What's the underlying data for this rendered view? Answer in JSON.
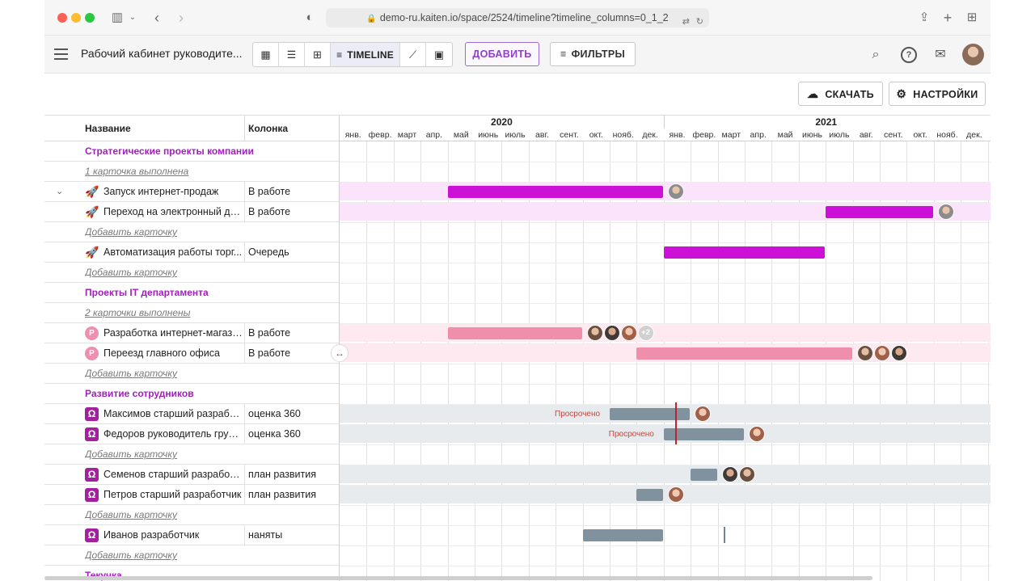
{
  "browser": {
    "url": "demo-ru.kaiten.io/space/2524/timeline?timeline_columns=0_1_2"
  },
  "header": {
    "space_title": "Рабочий кабинет руководите...",
    "view_active_label": "TIMELINE",
    "add_label": "ДОБАВИТЬ",
    "filters_label": "ФИЛЬТРЫ"
  },
  "toolbar": {
    "download_label": "СКАЧАТЬ",
    "settings_label": "НАСТРОЙКИ"
  },
  "table": {
    "col_name": "Название",
    "col_column": "Колонка"
  },
  "timeline": {
    "years": [
      "2020",
      "2021"
    ],
    "months": [
      "янв.",
      "февр.",
      "март",
      "апр.",
      "май",
      "июнь",
      "июль",
      "авг.",
      "сент.",
      "окт.",
      "нояб.",
      "дек.",
      "янв.",
      "февр.",
      "март",
      "апр.",
      "май",
      "июнь",
      "июль",
      "авг.",
      "сент.",
      "окт.",
      "нояб.",
      "дек."
    ],
    "overdue_label": "Просрочено",
    "more_avatars": "+2"
  },
  "rows": [
    {
      "type": "group",
      "title": "Стратегические проекты компании"
    },
    {
      "type": "done",
      "text": "1 карточка выполнена"
    },
    {
      "type": "card",
      "icon": "rocket-icon",
      "name": "Запуск интернет-продаж",
      "column": "В работе",
      "start": "2020-05",
      "end": "2020-12",
      "color": "#cc10d6",
      "band": "#fbe4fb"
    },
    {
      "type": "card",
      "icon": "rocket-icon",
      "name": "Переход на электронный до...",
      "column": "В работе",
      "start": "2021-07",
      "end": "2021-10",
      "color": "#cc10d6",
      "band": "#fbe4fb"
    },
    {
      "type": "add",
      "text": "Добавить карточку"
    },
    {
      "type": "card",
      "icon": "rocket-icon",
      "name": "Автоматизация работы торг...",
      "column": "Очередь",
      "start": "2021-01",
      "end": "2021-06",
      "color": "#cc10d6",
      "band": ""
    },
    {
      "type": "add",
      "text": "Добавить карточку"
    },
    {
      "type": "group",
      "title": "Проекты IT департамента"
    },
    {
      "type": "done",
      "text": "2 карточки выполнены"
    },
    {
      "type": "card",
      "icon": "p-icon",
      "name": "Разработка интернет-магази...",
      "column": "В работе",
      "start": "2020-05",
      "end": "2020-09",
      "color": "#f08fab",
      "band": "#fde9ef"
    },
    {
      "type": "card",
      "icon": "p-icon",
      "name": "Переезд главного офиса",
      "column": "В работе",
      "start": "2020-12",
      "end": "2021-07",
      "color": "#f08fab",
      "band": "#fde9ef"
    },
    {
      "type": "add",
      "text": "Добавить карточку"
    },
    {
      "type": "group",
      "title": "Развитие сотрудников"
    },
    {
      "type": "card",
      "icon": "omega-icon",
      "name": "Максимов старший разработ...",
      "column": "оценка 360",
      "start": "2020-11",
      "end": "2021-01",
      "color": "#7f929e",
      "band": "#e8ebee"
    },
    {
      "type": "card",
      "icon": "omega-icon",
      "name": "Федоров руководитель групп...",
      "column": "оценка 360",
      "start": "2021-01",
      "end": "2021-03",
      "color": "#7f929e",
      "band": "#e8ebee"
    },
    {
      "type": "add",
      "text": "Добавить карточку"
    },
    {
      "type": "card",
      "icon": "omega-icon",
      "name": "Семенов старший разработч...",
      "column": "план развития",
      "start": "2021-02",
      "end": "2021-02",
      "color": "#7f929e",
      "band": "#e8ebee"
    },
    {
      "type": "card",
      "icon": "omega-icon",
      "name": "Петров старший разработчик",
      "column": "план развития",
      "start": "2020-12",
      "end": "2020-12",
      "color": "#7f929e",
      "band": "#e8ebee"
    },
    {
      "type": "add",
      "text": "Добавить карточку"
    },
    {
      "type": "card",
      "icon": "omega-icon",
      "name": "Иванов разработчик",
      "column": "наняты",
      "start": "2020-10",
      "end": "2020-12",
      "color": "#7f929e",
      "band": ""
    },
    {
      "type": "add",
      "text": "Добавить карточку"
    },
    {
      "type": "group",
      "title": "Текучка"
    }
  ]
}
